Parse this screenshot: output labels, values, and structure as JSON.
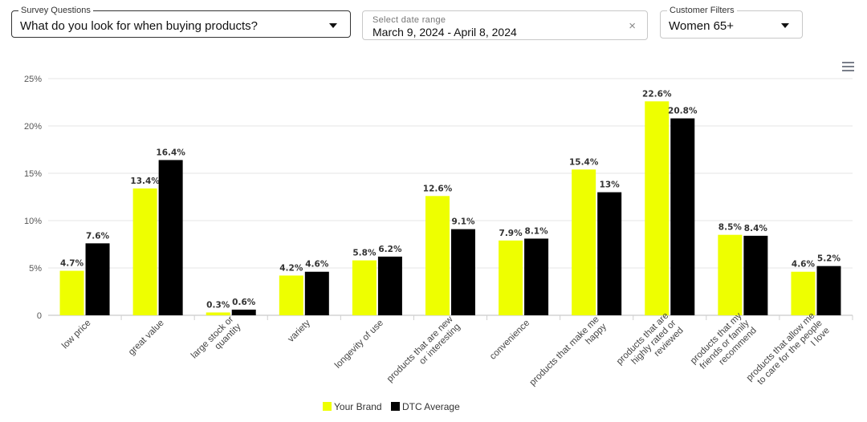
{
  "filters": {
    "survey": {
      "label": "Survey Questions",
      "value": "What do you look for when buying products?"
    },
    "date": {
      "label": "Select date range",
      "value": "March 9, 2024 - April 8, 2024",
      "clear_symbol": "×"
    },
    "customer": {
      "label": "Customer Filters",
      "value": "Women 65+"
    }
  },
  "colors": {
    "your_brand": "#eeff00",
    "dtc_average": "#000000"
  },
  "icons": {
    "menu": "hamburger-menu-icon",
    "clear": "close-icon",
    "caret": "chevron-down-icon"
  },
  "chart_data": {
    "type": "bar",
    "title": "",
    "xlabel": "",
    "ylabel": "",
    "ylim": [
      0,
      25
    ],
    "yticks": [
      "0",
      "5%",
      "10%",
      "15%",
      "20%",
      "25%"
    ],
    "grid": true,
    "legend_position": "bottom",
    "categories": [
      "low price",
      "great value",
      "large stock or quantity",
      "variety",
      "longevity of use",
      "products that are new or interesting",
      "convenience",
      "products that make me happy",
      "products that are highly rated or reviewed",
      "products that my friends or family recommend",
      "products that allow me to care for the people I love"
    ],
    "series": [
      {
        "name": "Your Brand",
        "values": [
          4.7,
          13.4,
          0.3,
          4.2,
          5.8,
          12.6,
          7.9,
          15.4,
          22.6,
          8.5,
          4.6
        ],
        "labels": [
          "4.7%",
          "13.4%",
          "0.3%",
          "4.2%",
          "5.8%",
          "12.6%",
          "7.9%",
          "15.4%",
          "22.6%",
          "8.5%",
          "4.6%"
        ]
      },
      {
        "name": "DTC Average",
        "values": [
          7.6,
          16.4,
          0.6,
          4.6,
          6.2,
          9.1,
          8.1,
          13,
          20.8,
          8.4,
          5.2
        ],
        "labels": [
          "7.6%",
          "16.4%",
          "0.6%",
          "4.6%",
          "6.2%",
          "9.1%",
          "8.1%",
          "13%",
          "20.8%",
          "8.4%",
          "5.2%"
        ]
      }
    ]
  }
}
